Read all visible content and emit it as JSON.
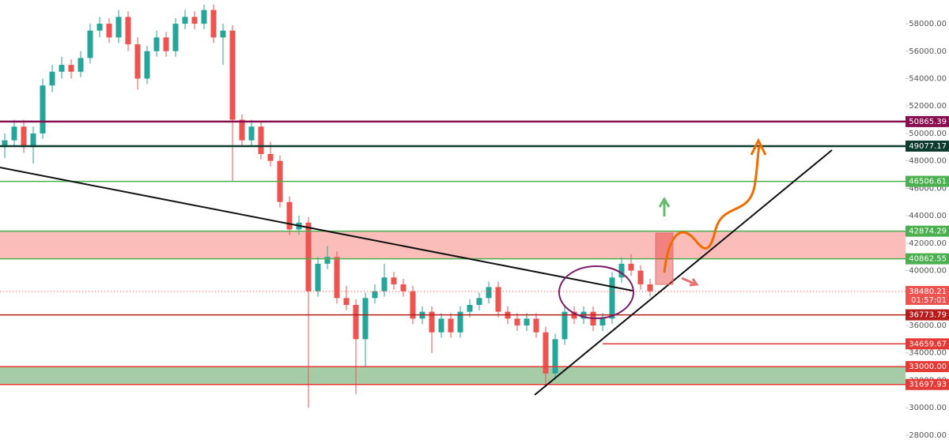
{
  "chart_data": {
    "type": "candlestick",
    "ylim": [
      27650,
      59730
    ],
    "yticks": [
      {
        "value": 28000,
        "label": "28000.00"
      },
      {
        "value": 30000,
        "label": "30000.00"
      },
      {
        "value": 32000,
        "label": "32000.00"
      },
      {
        "value": 34000,
        "label": "34000.00"
      },
      {
        "value": 36000,
        "label": "36000.00"
      },
      {
        "value": 38000,
        "label": "38000.00"
      },
      {
        "value": 40000,
        "label": "40000.00"
      },
      {
        "value": 42000,
        "label": "42000.00"
      },
      {
        "value": 44000,
        "label": "44000.00"
      },
      {
        "value": 46000,
        "label": "46000.00"
      },
      {
        "value": 48000,
        "label": "48000.00"
      },
      {
        "value": 50000,
        "label": "50000.00"
      },
      {
        "value": 52000,
        "label": "52000.00"
      },
      {
        "value": 54000,
        "label": "54000.00"
      },
      {
        "value": 56000,
        "label": "56000.00"
      },
      {
        "value": 58000,
        "label": "58000.00"
      }
    ],
    "up_color": "#26a69a",
    "down_color": "#ef5350",
    "candles": [
      [
        49000,
        50000,
        48200,
        49500
      ],
      [
        49500,
        51000,
        49000,
        50500
      ],
      [
        50500,
        51000,
        48600,
        49000
      ],
      [
        49000,
        50500,
        47800,
        50000
      ],
      [
        50000,
        54000,
        49600,
        53500
      ],
      [
        53500,
        55000,
        53000,
        54500
      ],
      [
        54500,
        55600,
        54000,
        55000
      ],
      [
        55000,
        55400,
        54000,
        54500
      ],
      [
        54500,
        56000,
        54100,
        55500
      ],
      [
        55500,
        58000,
        55100,
        57500
      ],
      [
        57500,
        58500,
        57000,
        58000
      ],
      [
        58000,
        58400,
        56600,
        57000
      ],
      [
        57000,
        59000,
        56600,
        58500
      ],
      [
        58500,
        58900,
        56000,
        56500
      ],
      [
        56500,
        57000,
        53200,
        54000
      ],
      [
        54000,
        56400,
        53600,
        56000
      ],
      [
        56000,
        57500,
        55600,
        57000
      ],
      [
        57000,
        57400,
        55600,
        56000
      ],
      [
        56000,
        58400,
        55600,
        58000
      ],
      [
        58000,
        59000,
        57600,
        58500
      ],
      [
        58500,
        58900,
        57600,
        58000
      ],
      [
        58000,
        59400,
        57600,
        59000
      ],
      [
        59000,
        59400,
        56600,
        57000
      ],
      [
        57000,
        58000,
        55000,
        57500
      ],
      [
        57500,
        57900,
        46500,
        51000
      ],
      [
        51000,
        51400,
        49000,
        49500
      ],
      [
        49500,
        51000,
        49100,
        50500
      ],
      [
        50500,
        50900,
        48100,
        48500
      ],
      [
        48500,
        49400,
        47600,
        48000
      ],
      [
        48000,
        48400,
        44600,
        45000
      ],
      [
        45000,
        45400,
        42600,
        43000
      ],
      [
        43000,
        44000,
        42600,
        43500
      ],
      [
        43500,
        43900,
        30000,
        38500
      ],
      [
        38500,
        41000,
        38100,
        40500
      ],
      [
        40500,
        41800,
        40100,
        41000
      ],
      [
        41000,
        41400,
        37600,
        38000
      ],
      [
        38000,
        38900,
        37100,
        37500
      ],
      [
        37500,
        37900,
        31000,
        35000
      ],
      [
        35000,
        38400,
        33000,
        38000
      ],
      [
        38000,
        39000,
        37600,
        38500
      ],
      [
        38500,
        40500,
        38100,
        39500
      ],
      [
        39500,
        39900,
        38600,
        39000
      ],
      [
        39000,
        39400,
        38100,
        38500
      ],
      [
        38500,
        38900,
        36100,
        36500
      ],
      [
        36500,
        37400,
        36100,
        37000
      ],
      [
        37000,
        37400,
        34000,
        35500
      ],
      [
        35500,
        36900,
        35100,
        36500
      ],
      [
        36500,
        36900,
        35100,
        35500
      ],
      [
        35500,
        37400,
        35100,
        37000
      ],
      [
        37000,
        37900,
        36600,
        37500
      ],
      [
        37500,
        38400,
        37100,
        38000
      ],
      [
        38000,
        39200,
        37600,
        38800
      ],
      [
        38800,
        39200,
        36600,
        37000
      ],
      [
        37000,
        37400,
        36100,
        36500
      ],
      [
        36500,
        36900,
        35600,
        36000
      ],
      [
        36000,
        36900,
        35600,
        36500
      ],
      [
        36500,
        36900,
        35100,
        35500
      ],
      [
        35500,
        35900,
        31500,
        32500
      ],
      [
        32500,
        35400,
        32100,
        35000
      ],
      [
        35000,
        37400,
        34600,
        37000
      ],
      [
        37000,
        37400,
        36100,
        36500
      ],
      [
        36500,
        37400,
        36100,
        37000
      ],
      [
        37000,
        37400,
        35600,
        36000
      ],
      [
        36000,
        36900,
        35600,
        36500
      ],
      [
        36500,
        39900,
        36100,
        39500
      ],
      [
        39500,
        41000,
        39100,
        40500
      ],
      [
        40500,
        41200,
        39600,
        40000
      ],
      [
        40000,
        40400,
        38600,
        39000
      ],
      [
        39000,
        39400,
        38100,
        38500
      ]
    ],
    "levels": [
      {
        "value": 50865.39,
        "color": "#880e4f"
      },
      {
        "value": 49077.17,
        "color": "#0d3b2e"
      },
      {
        "value": 46506.61,
        "color": "#4caf50"
      },
      {
        "value": 42874.29,
        "color": "#4caf50"
      },
      {
        "value": 40862.55,
        "color": "#4caf50"
      },
      {
        "value": 36773.79,
        "color": "#b71c1c"
      },
      {
        "value": 34659.67,
        "color": "#e53935"
      },
      {
        "value": 33000,
        "label": "33000.00",
        "color": "#e53935"
      },
      {
        "value": 31697.93,
        "color": "#e53935"
      }
    ],
    "zones": [
      {
        "from": 40862.55,
        "to": 42874.29,
        "color": "rgba(244,67,54,0.35)"
      },
      {
        "from": 31697.93,
        "to": 33000,
        "color": "rgba(56,142,60,0.45)"
      }
    ],
    "current_price": {
      "value": 38480.21,
      "countdown": "01:57:01",
      "color": "#ef5350"
    }
  }
}
